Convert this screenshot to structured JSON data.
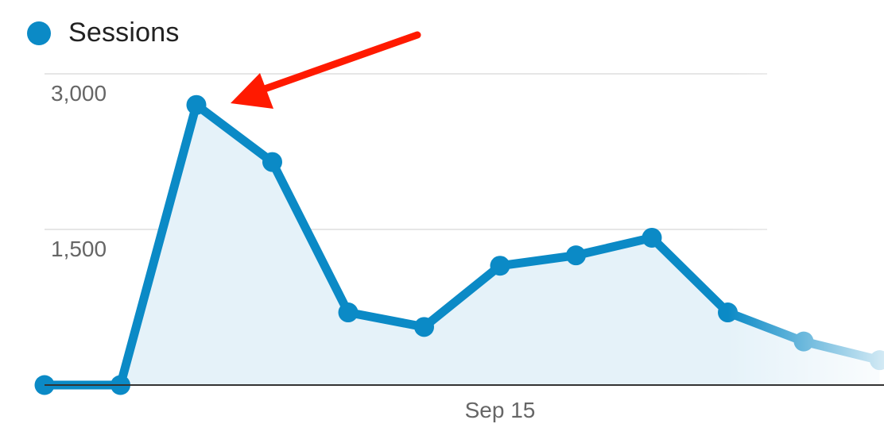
{
  "chart_data": {
    "type": "area",
    "series": [
      {
        "name": "Sessions",
        "x": [
          "",
          "",
          "",
          "",
          "",
          "",
          "Sep 15",
          "",
          "",
          "",
          "",
          ""
        ],
        "values": [
          0,
          0,
          2700,
          2150,
          700,
          560,
          1150,
          1250,
          1420,
          700,
          420,
          240
        ]
      }
    ],
    "y_ticks": [
      {
        "value": 3000,
        "label": "3,000"
      },
      {
        "value": 1500,
        "label": "1,500"
      }
    ],
    "x_ticks": [
      {
        "index": 6,
        "label": "Sep 15"
      }
    ],
    "ylim": [
      0,
      3000
    ],
    "grid": true,
    "legend_position": "top-left",
    "annotation": "red arrow pointing at the peak point",
    "colors": {
      "line": "#0b8ac6",
      "fill": "#e5f2f9",
      "grid": "#e6e6e6",
      "baseline": "#333333",
      "arrow": "#ff1a00"
    }
  }
}
